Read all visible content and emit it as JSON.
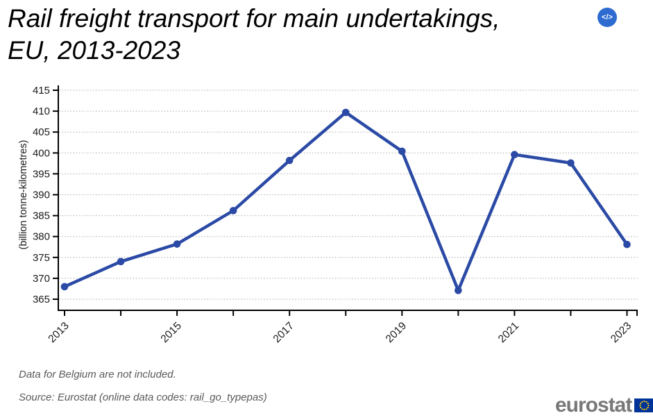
{
  "header": {
    "title_line1": "Rail freight transport for main undertakings,",
    "title_line2": "EU, 2013-2023",
    "code_icon_label": "</>"
  },
  "chart_data": {
    "type": "line",
    "title": "Rail freight transport for main undertakings, EU, 2013-2023",
    "x": [
      2013,
      2014,
      2015,
      2016,
      2017,
      2018,
      2019,
      2020,
      2021,
      2022,
      2023
    ],
    "series": [
      {
        "name": "EU rail freight transport",
        "values": [
          368.0,
          374.0,
          378.2,
          386.2,
          398.2,
          409.7,
          400.4,
          367.1,
          399.6,
          397.6,
          378.1
        ]
      }
    ],
    "xlabel": "",
    "ylabel": "(billion tonne-kilometres)",
    "ylim": [
      365,
      415
    ],
    "ytick_step": 5,
    "xtick_label_step": 2,
    "grid": "horizontal-dotted",
    "legend_position": "none",
    "line_color": "#2b4aa5",
    "marker": "circle"
  },
  "footer": {
    "note": "Data for Belgium are not included.",
    "source": "Source: Eurostat (online data codes: rail_go_typepas)",
    "logo_text": "eurostat"
  },
  "colors": {
    "accent_blue": "#2b4aa5",
    "button_blue": "#2e6bd0",
    "flag_blue": "#003399",
    "star_yellow": "#ffcc00",
    "grid_gray": "#a9a9a9",
    "note_gray": "#595959",
    "logo_gray": "#787878"
  }
}
